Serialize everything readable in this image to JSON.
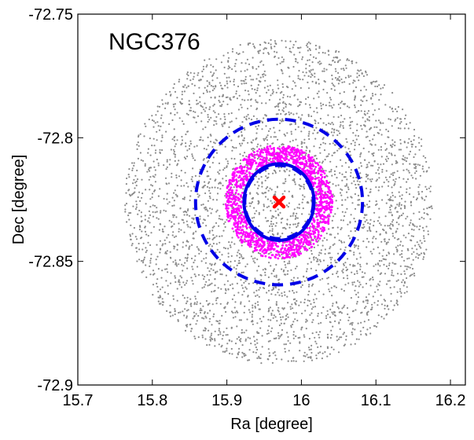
{
  "chart_data": {
    "type": "scatter",
    "title": "NGC376",
    "xlabel": "Ra [degree]",
    "ylabel": "Dec [degree]",
    "xlim": [
      15.7,
      16.22
    ],
    "ylim": [
      -72.9,
      -72.75
    ],
    "xticks": [
      15.7,
      15.8,
      15.9,
      16.0,
      16.1,
      16.2
    ],
    "xtick_labels": [
      "15.7",
      "15.8",
      "15.9",
      "16",
      "16.1",
      "16.2"
    ],
    "yticks": [
      -72.75,
      -72.8,
      -72.85,
      -72.9
    ],
    "ytick_labels": [
      "-72.75",
      "-72.8",
      "-72.85",
      "-72.9"
    ],
    "center": {
      "ra": 15.97,
      "dec": -72.826
    },
    "field": {
      "ra_halfwidth": 0.207,
      "dec_halfwidth": 0.066,
      "color": "#8c8c8c"
    },
    "annulus": {
      "inner_ra": 0.05,
      "outer_ra": 0.072,
      "inner_dec": 0.016,
      "outer_dec": 0.023,
      "color": "#ff00ff"
    },
    "circles": [
      {
        "ra_radius": 0.046,
        "dec_radius": 0.0148,
        "style": "dashed",
        "color": "#0000e6"
      },
      {
        "ra_radius": 0.047,
        "dec_radius": 0.0155,
        "style": "solid",
        "color": "#0000e6"
      },
      {
        "ra_radius": 0.112,
        "dec_radius": 0.0335,
        "style": "dashed",
        "color": "#0000e6"
      }
    ],
    "marker": {
      "shape": "x",
      "color": "#ff0000",
      "ra": 15.97,
      "dec": -72.826
    },
    "grid": false
  }
}
